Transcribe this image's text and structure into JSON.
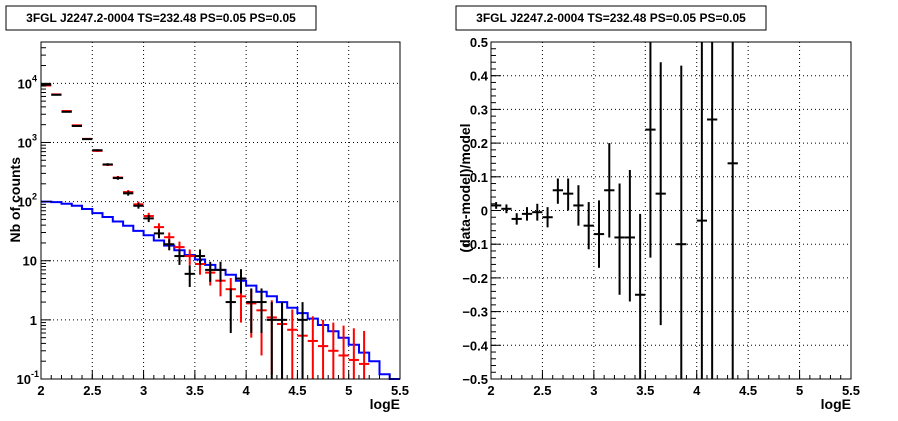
{
  "colors": {
    "data": "#000000",
    "model": "#ff0000",
    "background": "#0000ff",
    "grid": "#000000"
  },
  "chart_data": [
    {
      "type": "scatter",
      "title": "3FGL J2247.2-0004 TS=232.48 PS=0.05 PS=0.05",
      "xlabel": "logE",
      "ylabel": "Nb of counts",
      "xlim": [
        2,
        5.5
      ],
      "ylim": [
        0.1,
        50000
      ],
      "yscale": "log",
      "grid": true,
      "x_ticks": [
        {
          "v": 2,
          "label": "2"
        },
        {
          "v": 2.5,
          "label": "2.5"
        },
        {
          "v": 3,
          "label": "3"
        },
        {
          "v": 3.5,
          "label": "3.5"
        },
        {
          "v": 4,
          "label": "4"
        },
        {
          "v": 4.5,
          "label": "4.5"
        },
        {
          "v": 5,
          "label": "5"
        },
        {
          "v": 5.5,
          "label": "5.5"
        }
      ],
      "y_ticks": [
        {
          "v": 0.1,
          "base": "10",
          "exp": "-1",
          "plain": ""
        },
        {
          "v": 1,
          "base": "",
          "exp": "",
          "plain": "1"
        },
        {
          "v": 10,
          "base": "",
          "exp": "",
          "plain": "10"
        },
        {
          "v": 100,
          "base": "10",
          "exp": "2",
          "plain": ""
        },
        {
          "v": 1000,
          "base": "10",
          "exp": "3",
          "plain": ""
        },
        {
          "v": 10000,
          "base": "10",
          "exp": "4",
          "plain": ""
        }
      ],
      "x_centers": [
        2.05,
        2.15,
        2.25,
        2.35,
        2.45,
        2.55,
        2.65,
        2.75,
        2.85,
        2.95,
        3.05,
        3.15,
        3.25,
        3.35,
        3.45,
        3.55,
        3.65,
        3.75,
        3.85,
        3.95,
        4.05,
        4.15,
        4.25,
        4.35,
        4.45,
        4.55,
        4.65,
        4.75,
        4.85,
        4.95,
        5.05,
        5.15,
        5.25,
        5.35,
        5.45
      ],
      "series": [
        {
          "role": "data",
          "points": [
            {
              "x": 2.05,
              "y": 9500,
              "lo": 9400,
              "hi": 9600
            },
            {
              "x": 2.15,
              "y": 6400,
              "lo": 6320,
              "hi": 6480
            },
            {
              "x": 2.25,
              "y": 3300,
              "lo": 3240,
              "hi": 3360
            },
            {
              "x": 2.35,
              "y": 1900,
              "lo": 1860,
              "hi": 1940
            },
            {
              "x": 2.45,
              "y": 1140,
              "lo": 1110,
              "hi": 1170
            },
            {
              "x": 2.55,
              "y": 740,
              "lo": 713,
              "hi": 767
            },
            {
              "x": 2.65,
              "y": 425,
              "lo": 404,
              "hi": 446
            },
            {
              "x": 2.75,
              "y": 250,
              "lo": 234,
              "hi": 266
            },
            {
              "x": 2.85,
              "y": 138,
              "lo": 126,
              "hi": 150
            },
            {
              "x": 2.95,
              "y": 85,
              "lo": 76,
              "hi": 94
            },
            {
              "x": 3.05,
              "y": 52,
              "lo": 45,
              "hi": 59
            },
            {
              "x": 3.15,
              "y": 29,
              "lo": 24,
              "hi": 34
            },
            {
              "x": 3.25,
              "y": 19,
              "lo": 15,
              "hi": 23
            },
            {
              "x": 3.35,
              "y": 12,
              "lo": 8.5,
              "hi": 15.5
            },
            {
              "x": 3.45,
              "y": 6,
              "lo": 3.6,
              "hi": 8.4
            },
            {
              "x": 3.55,
              "y": 12,
              "lo": 8.5,
              "hi": 15.5
            },
            {
              "x": 3.65,
              "y": 7,
              "lo": 4.4,
              "hi": 9.6
            },
            {
              "x": 3.75,
              "y": 7,
              "lo": 4.4,
              "hi": 9.6
            },
            {
              "x": 3.85,
              "y": 2,
              "lo": 0.6,
              "hi": 3.4
            },
            {
              "x": 3.95,
              "y": 5,
              "lo": 2.8,
              "hi": 7.2
            },
            {
              "x": 4.05,
              "y": 2,
              "lo": 0.6,
              "hi": 3.4
            },
            {
              "x": 4.15,
              "y": 2,
              "lo": 0.6,
              "hi": 3.4
            },
            {
              "x": 4.25,
              "y": 1,
              "lo": 0.1,
              "hi": 2
            },
            {
              "x": 4.35,
              "y": 1,
              "lo": 0.1,
              "hi": 2
            },
            {
              "x": 4.55,
              "y": 1,
              "lo": 0.1,
              "hi": 2
            }
          ]
        },
        {
          "role": "model",
          "points": [
            {
              "x": 2.05,
              "y": 9200,
              "lo": 9104,
              "hi": 9296
            },
            {
              "x": 2.15,
              "y": 6500,
              "lo": 6419,
              "hi": 6581
            },
            {
              "x": 2.25,
              "y": 3400,
              "lo": 3342,
              "hi": 3458
            },
            {
              "x": 2.35,
              "y": 1950,
              "lo": 1906,
              "hi": 1994
            },
            {
              "x": 2.45,
              "y": 1150,
              "lo": 1116,
              "hi": 1184
            },
            {
              "x": 2.55,
              "y": 720,
              "lo": 693,
              "hi": 747
            },
            {
              "x": 2.65,
              "y": 420,
              "lo": 400,
              "hi": 440
            },
            {
              "x": 2.75,
              "y": 255,
              "lo": 239,
              "hi": 271
            },
            {
              "x": 2.85,
              "y": 145,
              "lo": 133,
              "hi": 157
            },
            {
              "x": 2.95,
              "y": 90,
              "lo": 80.5,
              "hi": 99.5
            },
            {
              "x": 3.05,
              "y": 57,
              "lo": 49.5,
              "hi": 64.5
            },
            {
              "x": 3.15,
              "y": 37,
              "lo": 31,
              "hi": 43
            },
            {
              "x": 3.25,
              "y": 25,
              "lo": 20,
              "hi": 30
            },
            {
              "x": 3.35,
              "y": 17,
              "lo": 12.9,
              "hi": 21.1
            },
            {
              "x": 3.45,
              "y": 12,
              "lo": 8.5,
              "hi": 15.5
            },
            {
              "x": 3.55,
              "y": 8.8,
              "lo": 5.8,
              "hi": 11.8
            },
            {
              "x": 3.65,
              "y": 6.3,
              "lo": 3.8,
              "hi": 8.8
            },
            {
              "x": 3.75,
              "y": 4.6,
              "lo": 2.5,
              "hi": 6.7
            },
            {
              "x": 3.85,
              "y": 3.3,
              "lo": 1.5,
              "hi": 5.1
            },
            {
              "x": 3.95,
              "y": 2.5,
              "lo": 0.9,
              "hi": 4.1
            },
            {
              "x": 4.05,
              "y": 1.9,
              "lo": 0.5,
              "hi": 3.3
            },
            {
              "x": 4.15,
              "y": 1.45,
              "lo": 0.25,
              "hi": 2.65
            },
            {
              "x": 4.25,
              "y": 1.1,
              "lo": 0.12,
              "hi": 2.15
            },
            {
              "x": 4.35,
              "y": 0.85,
              "lo": 0.1,
              "hi": 1.8
            },
            {
              "x": 4.45,
              "y": 0.68,
              "lo": 0.1,
              "hi": 1.5
            },
            {
              "x": 4.55,
              "y": 0.54,
              "lo": 0.1,
              "hi": 1.3
            },
            {
              "x": 4.65,
              "y": 0.44,
              "lo": 0.1,
              "hi": 1.15
            },
            {
              "x": 4.75,
              "y": 0.36,
              "lo": 0.1,
              "hi": 1.0
            },
            {
              "x": 4.85,
              "y": 0.3,
              "lo": 0.1,
              "hi": 0.9
            },
            {
              "x": 4.95,
              "y": 0.25,
              "lo": 0.1,
              "hi": 0.8
            },
            {
              "x": 5.05,
              "y": 0.21,
              "lo": 0.1,
              "hi": 0.72
            },
            {
              "x": 5.15,
              "y": 0.18,
              "lo": 0.1,
              "hi": 0.65
            }
          ]
        },
        {
          "role": "background",
          "step_edges": [
            2.0,
            2.1,
            2.2,
            2.3,
            2.4,
            2.5,
            2.6,
            2.7,
            2.8,
            2.9,
            3.0,
            3.1,
            3.2,
            3.3,
            3.4,
            3.5,
            3.6,
            3.7,
            3.8,
            3.9,
            4.0,
            4.1,
            4.2,
            4.3,
            4.4,
            4.5,
            4.6,
            4.7,
            4.8,
            4.9,
            5.0,
            5.1,
            5.2,
            5.3,
            5.4,
            5.5
          ],
          "step_values": [
            100,
            98,
            92,
            85,
            75,
            64,
            55,
            46,
            39,
            32,
            27,
            22,
            18,
            15,
            12.5,
            10.5,
            8.5,
            7,
            5.8,
            4.6,
            3.8,
            3.0,
            2.5,
            2.0,
            1.6,
            1.3,
            1.05,
            0.82,
            0.64,
            0.5,
            0.38,
            0.28,
            0.2,
            0.12,
            0.1
          ]
        }
      ]
    },
    {
      "type": "scatter",
      "title": "3FGL J2247.2-0004 TS=232.48 PS=0.05 PS=0.05",
      "xlabel": "logE",
      "ylabel": "(data-model)/model",
      "xlim": [
        2,
        5.5
      ],
      "ylim": [
        -0.5,
        0.5
      ],
      "grid": true,
      "x_ticks": [
        {
          "v": 2,
          "label": "2"
        },
        {
          "v": 2.5,
          "label": "2.5"
        },
        {
          "v": 3,
          "label": "3"
        },
        {
          "v": 3.5,
          "label": "3.5"
        },
        {
          "v": 4,
          "label": "4"
        },
        {
          "v": 4.5,
          "label": "4.5"
        },
        {
          "v": 5,
          "label": "5"
        },
        {
          "v": 5.5,
          "label": "5.5"
        }
      ],
      "y_ticks": [
        {
          "v": -0.5,
          "label": "−0.5"
        },
        {
          "v": -0.4,
          "label": "−0.4"
        },
        {
          "v": -0.3,
          "label": "−0.3"
        },
        {
          "v": -0.2,
          "label": "−0.2"
        },
        {
          "v": -0.1,
          "label": "−0.1"
        },
        {
          "v": 0,
          "label": "0"
        },
        {
          "v": 0.1,
          "label": "0.1"
        },
        {
          "v": 0.2,
          "label": "0.2"
        },
        {
          "v": 0.3,
          "label": "0.3"
        },
        {
          "v": 0.4,
          "label": "0.4"
        },
        {
          "v": 0.5,
          "label": "0.5"
        }
      ],
      "series": [
        {
          "role": "residual",
          "points": [
            {
              "x": 2.05,
              "y": 0.015,
              "lo": 0.005,
              "hi": 0.025
            },
            {
              "x": 2.15,
              "y": 0.005,
              "lo": -0.008,
              "hi": 0.018
            },
            {
              "x": 2.25,
              "y": -0.025,
              "lo": -0.042,
              "hi": -0.008
            },
            {
              "x": 2.35,
              "y": -0.01,
              "lo": -0.03,
              "hi": 0.01
            },
            {
              "x": 2.45,
              "y": -0.005,
              "lo": -0.03,
              "hi": 0.02
            },
            {
              "x": 2.55,
              "y": -0.02,
              "lo": -0.05,
              "hi": 0.01
            },
            {
              "x": 2.65,
              "y": 0.06,
              "lo": 0.02,
              "hi": 0.095
            },
            {
              "x": 2.75,
              "y": 0.05,
              "lo": 0.0,
              "hi": 0.095
            },
            {
              "x": 2.85,
              "y": 0.015,
              "lo": -0.045,
              "hi": 0.075
            },
            {
              "x": 2.95,
              "y": -0.045,
              "lo": -0.115,
              "hi": 0.025
            },
            {
              "x": 3.05,
              "y": -0.07,
              "lo": -0.17,
              "hi": 0.03
            },
            {
              "x": 3.15,
              "y": 0.06,
              "lo": -0.08,
              "hi": 0.2
            },
            {
              "x": 3.25,
              "y": -0.08,
              "lo": -0.25,
              "hi": 0.08
            },
            {
              "x": 3.35,
              "y": -0.08,
              "lo": -0.27,
              "hi": 0.12
            },
            {
              "x": 3.45,
              "y": -0.25,
              "lo": -0.5,
              "hi": -0.01
            },
            {
              "x": 3.55,
              "y": 0.24,
              "lo": -0.14,
              "hi": 0.5
            },
            {
              "x": 3.65,
              "y": 0.05,
              "lo": -0.34,
              "hi": 0.44
            },
            {
              "x": 3.85,
              "y": -0.1,
              "lo": -0.5,
              "hi": 0.43
            },
            {
              "x": 4.05,
              "y": -0.03,
              "lo": -0.5,
              "hi": 0.5
            },
            {
              "x": 4.15,
              "y": 0.27,
              "lo": -0.5,
              "hi": 0.5
            },
            {
              "x": 4.35,
              "y": 0.14,
              "lo": -0.5,
              "hi": 0.5
            }
          ]
        }
      ]
    }
  ]
}
